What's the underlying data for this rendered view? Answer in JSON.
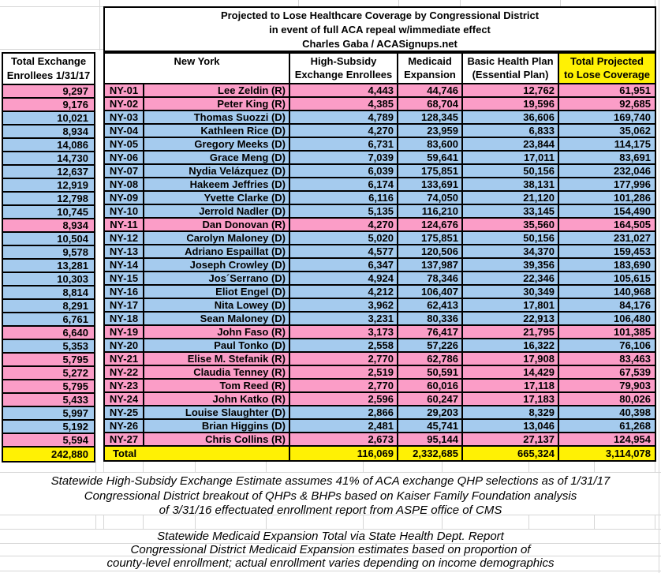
{
  "title": {
    "line1": "Projected to Lose Healthcare Coverage by Congressional District",
    "line2": "in event of full ACA repeal w/immediate effect",
    "line3": "Charles Gaba / ACASignups.net"
  },
  "left_column": {
    "header_line1": "Total Exchange",
    "header_line2": "Enrollees 1/31/17"
  },
  "header": {
    "state": "New York",
    "high_subsidy": [
      "High-Subsidy",
      "Exchange Enrollees"
    ],
    "medicaid": [
      "Medicaid",
      "Expansion"
    ],
    "bhp": [
      "Basic Health Plan",
      "(Essential Plan)"
    ],
    "total": [
      "Total Projected",
      "to Lose Coverage"
    ]
  },
  "rows": [
    {
      "district": "NY-01",
      "rep": "Lee Zeldin (R)",
      "party": "R",
      "exchange": "9,297",
      "high_subsidy": "4,443",
      "medicaid": "44,746",
      "bhp": "12,762",
      "total": "61,951"
    },
    {
      "district": "NY-02",
      "rep": "Peter King (R)",
      "party": "R",
      "exchange": "9,176",
      "high_subsidy": "4,385",
      "medicaid": "68,704",
      "bhp": "19,596",
      "total": "92,685"
    },
    {
      "district": "NY-03",
      "rep": "Thomas Suozzi (D)",
      "party": "D",
      "exchange": "10,021",
      "high_subsidy": "4,789",
      "medicaid": "128,345",
      "bhp": "36,606",
      "total": "169,740"
    },
    {
      "district": "NY-04",
      "rep": "Kathleen Rice (D)",
      "party": "D",
      "exchange": "8,934",
      "high_subsidy": "4,270",
      "medicaid": "23,959",
      "bhp": "6,833",
      "total": "35,062"
    },
    {
      "district": "NY-05",
      "rep": "Gregory Meeks (D)",
      "party": "D",
      "exchange": "14,086",
      "high_subsidy": "6,731",
      "medicaid": "83,600",
      "bhp": "23,844",
      "total": "114,175"
    },
    {
      "district": "NY-06",
      "rep": "Grace Meng (D)",
      "party": "D",
      "exchange": "14,730",
      "high_subsidy": "7,039",
      "medicaid": "59,641",
      "bhp": "17,011",
      "total": "83,691"
    },
    {
      "district": "NY-07",
      "rep": "Nydia Velázquez (D)",
      "party": "D",
      "exchange": "12,637",
      "high_subsidy": "6,039",
      "medicaid": "175,851",
      "bhp": "50,156",
      "total": "232,046"
    },
    {
      "district": "NY-08",
      "rep": "Hakeem Jeffries (D)",
      "party": "D",
      "exchange": "12,919",
      "high_subsidy": "6,174",
      "medicaid": "133,691",
      "bhp": "38,131",
      "total": "177,996"
    },
    {
      "district": "NY-09",
      "rep": "Yvette Clarke (D)",
      "party": "D",
      "exchange": "12,798",
      "high_subsidy": "6,116",
      "medicaid": "74,050",
      "bhp": "21,120",
      "total": "101,286"
    },
    {
      "district": "NY-10",
      "rep": "Jerrold Nadler (D)",
      "party": "D",
      "exchange": "10,745",
      "high_subsidy": "5,135",
      "medicaid": "116,210",
      "bhp": "33,145",
      "total": "154,490"
    },
    {
      "district": "NY-11",
      "rep": "Dan Donovan (R)",
      "party": "R",
      "exchange": "8,934",
      "high_subsidy": "4,270",
      "medicaid": "124,676",
      "bhp": "35,560",
      "total": "164,505"
    },
    {
      "district": "NY-12",
      "rep": "Carolyn Maloney (D)",
      "party": "D",
      "exchange": "10,504",
      "high_subsidy": "5,020",
      "medicaid": "175,851",
      "bhp": "50,156",
      "total": "231,027"
    },
    {
      "district": "NY-13",
      "rep": "Adriano Espaillat (D)",
      "party": "D",
      "exchange": "9,578",
      "high_subsidy": "4,577",
      "medicaid": "120,506",
      "bhp": "34,370",
      "total": "159,453"
    },
    {
      "district": "NY-14",
      "rep": "Joseph Crowley (D)",
      "party": "D",
      "exchange": "13,281",
      "high_subsidy": "6,347",
      "medicaid": "137,987",
      "bhp": "39,356",
      "total": "183,690"
    },
    {
      "district": "NY-15",
      "rep": "Jos´Serrano (D)",
      "party": "D",
      "exchange": "10,303",
      "high_subsidy": "4,924",
      "medicaid": "78,346",
      "bhp": "22,346",
      "total": "105,615"
    },
    {
      "district": "NY-16",
      "rep": "Eliot Engel (D)",
      "party": "D",
      "exchange": "8,814",
      "high_subsidy": "4,212",
      "medicaid": "106,407",
      "bhp": "30,349",
      "total": "140,968"
    },
    {
      "district": "NY-17",
      "rep": "Nita Lowey (D)",
      "party": "D",
      "exchange": "8,291",
      "high_subsidy": "3,962",
      "medicaid": "62,413",
      "bhp": "17,801",
      "total": "84,176"
    },
    {
      "district": "NY-18",
      "rep": "Sean Maloney (D)",
      "party": "D",
      "exchange": "6,761",
      "high_subsidy": "3,231",
      "medicaid": "80,336",
      "bhp": "22,913",
      "total": "106,480"
    },
    {
      "district": "NY-19",
      "rep": "John Faso (R)",
      "party": "R",
      "exchange": "6,640",
      "high_subsidy": "3,173",
      "medicaid": "76,417",
      "bhp": "21,795",
      "total": "101,385"
    },
    {
      "district": "NY-20",
      "rep": "Paul Tonko (D)",
      "party": "D",
      "exchange": "5,353",
      "high_subsidy": "2,558",
      "medicaid": "57,226",
      "bhp": "16,322",
      "total": "76,106"
    },
    {
      "district": "NY-21",
      "rep": "Elise M. Stefanik (R)",
      "party": "R",
      "exchange": "5,795",
      "high_subsidy": "2,770",
      "medicaid": "62,786",
      "bhp": "17,908",
      "total": "83,463"
    },
    {
      "district": "NY-22",
      "rep": "Claudia Tenney (R)",
      "party": "R",
      "exchange": "5,272",
      "high_subsidy": "2,519",
      "medicaid": "50,591",
      "bhp": "14,429",
      "total": "67,539"
    },
    {
      "district": "NY-23",
      "rep": "Tom Reed (R)",
      "party": "R",
      "exchange": "5,795",
      "high_subsidy": "2,770",
      "medicaid": "60,016",
      "bhp": "17,118",
      "total": "79,903"
    },
    {
      "district": "NY-24",
      "rep": "John Katko (R)",
      "party": "R",
      "exchange": "5,433",
      "high_subsidy": "2,596",
      "medicaid": "60,247",
      "bhp": "17,183",
      "total": "80,026"
    },
    {
      "district": "NY-25",
      "rep": "Louise Slaughter (D)",
      "party": "D",
      "exchange": "5,997",
      "high_subsidy": "2,866",
      "medicaid": "29,203",
      "bhp": "8,329",
      "total": "40,398"
    },
    {
      "district": "NY-26",
      "rep": "Brian Higgins (D)",
      "party": "D",
      "exchange": "5,192",
      "high_subsidy": "2,481",
      "medicaid": "45,741",
      "bhp": "13,046",
      "total": "61,268"
    },
    {
      "district": "NY-27",
      "rep": "Chris Collins (R)",
      "party": "R",
      "exchange": "5,594",
      "high_subsidy": "2,673",
      "medicaid": "95,144",
      "bhp": "27,137",
      "total": "124,954"
    }
  ],
  "totals": {
    "label": "Total",
    "exchange": "242,880",
    "high_subsidy": "116,069",
    "medicaid": "2,332,685",
    "bhp": "665,324",
    "total": "3,114,078"
  },
  "footnotes": {
    "block1": [
      "Statewide High-Subsidy Exchange Estimate assumes 41% of ACA exchange QHP selections as of 1/31/17",
      "Congressional District breakout of QHPs & BHPs based on Kaiser Family Foundation analysis",
      "of 3/31/16 effectuated enrollment report from ASPE office of CMS"
    ],
    "block2": [
      "Statewide Medicaid Expansion Total via State Health Dept. Report",
      "Congressional District Medicaid Expansion estimates based on proportion of",
      "county-level enrollment; actual enrollment varies depending on income demographics"
    ]
  },
  "colors": {
    "republican": "#fb9dc7",
    "democrat": "#a5cbee",
    "highlight": "#fff104",
    "gridline": "#d6d6d6"
  }
}
